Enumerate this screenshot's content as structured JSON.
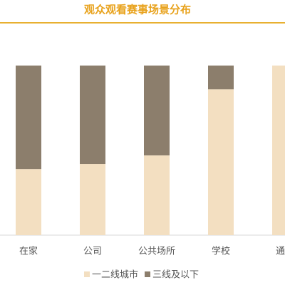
{
  "chart_data": {
    "type": "stacked_bar",
    "title": "观众观看赛事场景分布",
    "categories": [
      "在家",
      "公司",
      "公共场所",
      "学校",
      "通勤"
    ],
    "series": [
      {
        "name": "一二线城市",
        "color": "#f3dfc1",
        "values": [
          39,
          42,
          47,
          86,
          100
        ]
      },
      {
        "name": "三线及以下",
        "color": "#8c7e6c",
        "values": [
          61,
          58,
          53,
          14,
          0
        ]
      }
    ],
    "ylim": [
      0,
      100
    ],
    "legend": "bottom"
  }
}
